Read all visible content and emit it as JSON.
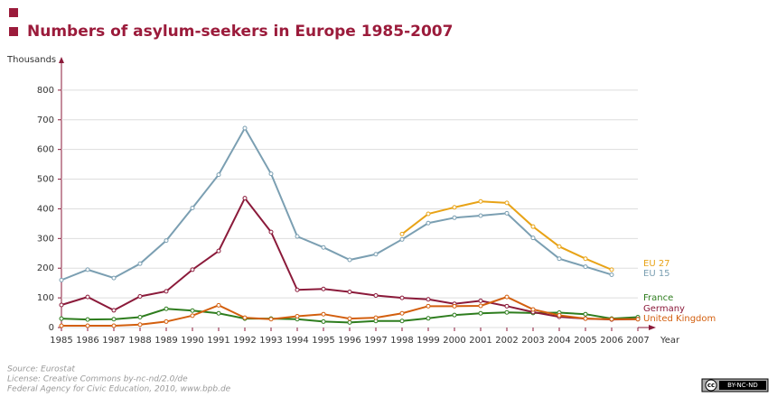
{
  "chart_data": {
    "type": "line",
    "title": "Numbers of asylum-seekers in Europe 1985-2007",
    "y_label": "Thousands",
    "x_label": "Year",
    "x": [
      1985,
      1986,
      1987,
      1988,
      1989,
      1990,
      1991,
      1992,
      1993,
      1994,
      1995,
      1996,
      1997,
      1998,
      1999,
      2000,
      2001,
      2002,
      2003,
      2004,
      2005,
      2006,
      2007
    ],
    "xlim": [
      1985,
      2007
    ],
    "ylim": [
      0,
      900
    ],
    "yticks": [
      0,
      100,
      200,
      300,
      400,
      500,
      600,
      700,
      800
    ],
    "series": [
      {
        "name": "EU 27",
        "color": "#e8a317",
        "values": [
          null,
          null,
          null,
          null,
          null,
          null,
          null,
          null,
          null,
          null,
          null,
          null,
          null,
          315,
          383,
          405,
          425,
          420,
          340,
          273,
          232,
          195,
          null
        ]
      },
      {
        "name": "EU 15",
        "color": "#7b9fb2",
        "values": [
          160,
          195,
          167,
          215,
          293,
          403,
          515,
          672,
          518,
          307,
          270,
          228,
          247,
          297,
          352,
          370,
          377,
          385,
          302,
          232,
          205,
          178,
          null
        ]
      },
      {
        "name": "France",
        "color": "#2e7d1e",
        "values": [
          30,
          27,
          28,
          35,
          63,
          57,
          48,
          30,
          30,
          28,
          20,
          17,
          22,
          22,
          31,
          42,
          48,
          51,
          49,
          50,
          45,
          30,
          35
        ]
      },
      {
        "name": "Germany",
        "color": "#8b1a3a",
        "values": [
          76,
          103,
          58,
          105,
          122,
          195,
          258,
          436,
          322,
          127,
          130,
          120,
          108,
          100,
          95,
          80,
          90,
          72,
          52,
          36,
          30,
          27,
          28
        ]
      },
      {
        "name": "United Kingdom",
        "color": "#d35f0e",
        "values": [
          6,
          6,
          6,
          10,
          20,
          40,
          75,
          33,
          28,
          38,
          45,
          30,
          33,
          48,
          72,
          72,
          73,
          103,
          61,
          41,
          30,
          28,
          28
        ]
      }
    ],
    "footer": [
      "Source: Eurostat",
      "License: Creative Commons by-nc-nd/2.0/de",
      "Federal Agency for Civic Education, 2010, www.bpb.de"
    ],
    "license_badge": [
      "cc",
      "BY-NC-ND"
    ]
  }
}
